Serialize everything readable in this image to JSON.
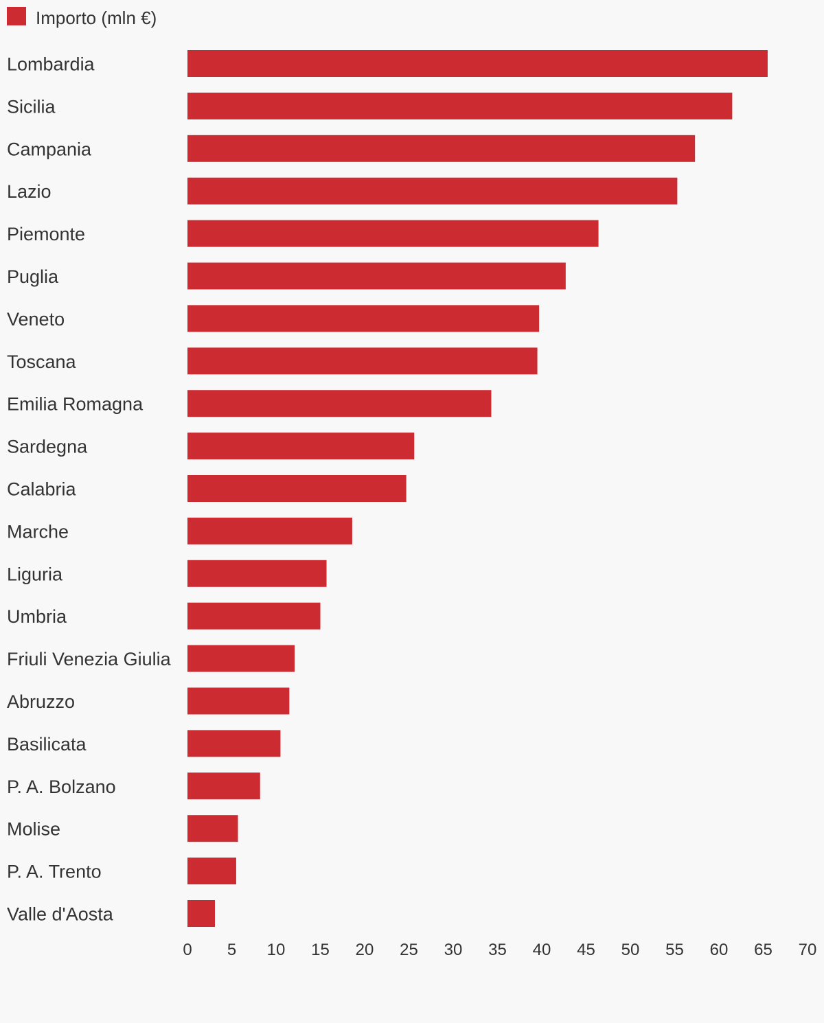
{
  "chart_data": {
    "type": "bar",
    "orientation": "horizontal",
    "categories": [
      "Lombardia",
      "Sicilia",
      "Campania",
      "Lazio",
      "Piemonte",
      "Puglia",
      "Veneto",
      "Toscana",
      "Emilia Romagna",
      "Sardegna",
      "Calabria",
      "Marche",
      "Liguria",
      "Umbria",
      "Friuli Venezia Giulia",
      "Abruzzo",
      "Basilicata",
      "P. A. Bolzano",
      "Molise",
      "P. A. Trento",
      "Valle d'Aosta"
    ],
    "series": [
      {
        "name": "Importo (mln €)",
        "color": "#cd2b32",
        "values": [
          65.5,
          61.5,
          57.3,
          55.3,
          46.4,
          42.7,
          39.7,
          39.5,
          34.3,
          25.6,
          24.7,
          18.6,
          15.7,
          15.0,
          12.1,
          11.5,
          10.5,
          8.2,
          5.7,
          5.5,
          3.1
        ]
      }
    ],
    "xlim": [
      0,
      70
    ],
    "xticks": [
      0,
      5,
      10,
      15,
      20,
      25,
      30,
      35,
      40,
      45,
      50,
      55,
      60,
      65,
      70
    ],
    "legend_position": "top-left",
    "grid": false
  }
}
